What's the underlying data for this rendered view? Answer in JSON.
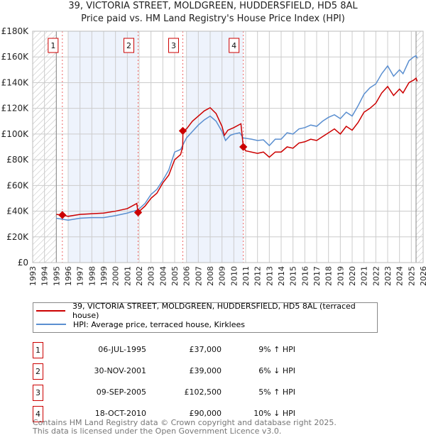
{
  "chart_data": {
    "type": "line",
    "title": "39, VICTORIA STREET, MOLDGREEN, HUDDERSFIELD, HD5 8AL",
    "subtitle": "Price paid vs. HM Land Registry's House Price Index (HPI)",
    "xlim": [
      1993,
      2026
    ],
    "ylim": [
      0,
      180000
    ],
    "x_ticks": [
      "1993",
      "1994",
      "1995",
      "1996",
      "1997",
      "1998",
      "1999",
      "2000",
      "2001",
      "2002",
      "2003",
      "2004",
      "2005",
      "2006",
      "2007",
      "2008",
      "2009",
      "2010",
      "2011",
      "2012",
      "2013",
      "2014",
      "2015",
      "2016",
      "2017",
      "2018",
      "2019",
      "2020",
      "2021",
      "2022",
      "2023",
      "2024",
      "2025",
      "2026"
    ],
    "y_ticks": [
      {
        "v": 0,
        "label": "£0"
      },
      {
        "v": 20000,
        "label": "£20K"
      },
      {
        "v": 40000,
        "label": "£40K"
      },
      {
        "v": 60000,
        "label": "£60K"
      },
      {
        "v": 80000,
        "label": "£80K"
      },
      {
        "v": 100000,
        "label": "£100K"
      },
      {
        "v": 120000,
        "label": "£120K"
      },
      {
        "v": 140000,
        "label": "£140K"
      },
      {
        "v": 160000,
        "label": "£160K"
      },
      {
        "v": 180000,
        "label": "£180K"
      }
    ],
    "grid": true,
    "series": [
      {
        "name": "39, VICTORIA STREET, MOLDGREEN, HUDDERSFIELD, HD5 8AL (terraced house)",
        "color": "#cc0000",
        "points": [
          [
            1995,
            37500
          ],
          [
            1995.5,
            37000
          ],
          [
            1996,
            36000
          ],
          [
            1997,
            37500
          ],
          [
            1998,
            38000
          ],
          [
            1999,
            38500
          ],
          [
            2000,
            40000
          ],
          [
            2001,
            42000
          ],
          [
            2001.8,
            46000
          ],
          [
            2001.9,
            39000
          ],
          [
            2002.5,
            44000
          ],
          [
            2003,
            50000
          ],
          [
            2003.5,
            54000
          ],
          [
            2004,
            62000
          ],
          [
            2004.5,
            68000
          ],
          [
            2005,
            80000
          ],
          [
            2005.5,
            84000
          ],
          [
            2005.68,
            90000
          ],
          [
            2005.7,
            102500
          ],
          [
            2006,
            104000
          ],
          [
            2006.5,
            110000
          ],
          [
            2007,
            114000
          ],
          [
            2007.5,
            118000
          ],
          [
            2008,
            120500
          ],
          [
            2008.5,
            116000
          ],
          [
            2009,
            106000
          ],
          [
            2009.2,
            99000
          ],
          [
            2009.5,
            103000
          ],
          [
            2010,
            105000
          ],
          [
            2010.6,
            108000
          ],
          [
            2010.8,
            90000
          ],
          [
            2011,
            87000
          ],
          [
            2012,
            85000
          ],
          [
            2012.5,
            86000
          ],
          [
            2013,
            82000
          ],
          [
            2013.5,
            86000
          ],
          [
            2014,
            86000
          ],
          [
            2014.5,
            90000
          ],
          [
            2015,
            89000
          ],
          [
            2015.5,
            93000
          ],
          [
            2016,
            94000
          ],
          [
            2016.5,
            96000
          ],
          [
            2017,
            95000
          ],
          [
            2017.5,
            98000
          ],
          [
            2018,
            101000
          ],
          [
            2018.5,
            104000
          ],
          [
            2019,
            100000
          ],
          [
            2019.5,
            106000
          ],
          [
            2020,
            103000
          ],
          [
            2020.5,
            109000
          ],
          [
            2021,
            117000
          ],
          [
            2021.5,
            120000
          ],
          [
            2022,
            124000
          ],
          [
            2022.5,
            132000
          ],
          [
            2023,
            137000
          ],
          [
            2023.5,
            130000
          ],
          [
            2024,
            135000
          ],
          [
            2024.3,
            132000
          ],
          [
            2024.8,
            140000
          ],
          [
            2025.2,
            142000
          ],
          [
            2025.4,
            143500
          ],
          [
            2025.5,
            141000
          ]
        ]
      },
      {
        "name": "HPI: Average price, terraced house, Kirklees",
        "color": "#5b8fd0",
        "points": [
          [
            1995,
            34500
          ],
          [
            1996,
            33000
          ],
          [
            1997,
            34500
          ],
          [
            1998,
            35000
          ],
          [
            1999,
            35000
          ],
          [
            2000,
            36500
          ],
          [
            2001,
            38500
          ],
          [
            2001.9,
            41000
          ],
          [
            2002.5,
            46000
          ],
          [
            2003,
            53000
          ],
          [
            2003.5,
            57000
          ],
          [
            2004,
            64000
          ],
          [
            2004.5,
            72000
          ],
          [
            2005,
            86000
          ],
          [
            2005.5,
            88000
          ],
          [
            2006,
            97000
          ],
          [
            2006.5,
            102000
          ],
          [
            2007,
            107000
          ],
          [
            2007.5,
            111000
          ],
          [
            2008,
            114000
          ],
          [
            2008.5,
            110000
          ],
          [
            2009,
            102000
          ],
          [
            2009.3,
            95000
          ],
          [
            2009.7,
            99000
          ],
          [
            2010,
            100000
          ],
          [
            2010.5,
            101000
          ],
          [
            2010.8,
            97000
          ],
          [
            2011.5,
            96000
          ],
          [
            2012,
            95000
          ],
          [
            2012.5,
            95500
          ],
          [
            2013,
            91000
          ],
          [
            2013.5,
            96000
          ],
          [
            2014,
            96000
          ],
          [
            2014.5,
            101000
          ],
          [
            2015,
            100000
          ],
          [
            2015.5,
            104000
          ],
          [
            2016,
            105000
          ],
          [
            2016.5,
            107000
          ],
          [
            2017,
            106000
          ],
          [
            2017.5,
            110000
          ],
          [
            2018,
            113000
          ],
          [
            2018.5,
            115000
          ],
          [
            2019,
            112000
          ],
          [
            2019.5,
            117000
          ],
          [
            2020,
            114000
          ],
          [
            2020.5,
            122000
          ],
          [
            2021,
            131000
          ],
          [
            2021.5,
            136000
          ],
          [
            2022,
            139000
          ],
          [
            2022.5,
            147000
          ],
          [
            2023,
            153000
          ],
          [
            2023.5,
            145000
          ],
          [
            2024,
            150000
          ],
          [
            2024.3,
            147000
          ],
          [
            2024.8,
            157000
          ],
          [
            2025.2,
            160000
          ],
          [
            2025.4,
            161000
          ],
          [
            2025.5,
            159000
          ]
        ]
      }
    ],
    "sales": [
      {
        "label": "1",
        "x": 1995.51,
        "y": 37000
      },
      {
        "label": "2",
        "x": 2001.91,
        "y": 39000
      },
      {
        "label": "3",
        "x": 2005.69,
        "y": 102500
      },
      {
        "label": "4",
        "x": 2010.8,
        "y": 90000
      }
    ]
  },
  "legend": {
    "red": "39, VICTORIA STREET, MOLDGREEN, HUDDERSFIELD, HD5 8AL (terraced house)",
    "blue": "HPI: Average price, terraced house, Kirklees"
  },
  "transactions": [
    {
      "num": "1",
      "date": "06-JUL-1995",
      "price": "£37,000",
      "hpi": "9% ↑ HPI"
    },
    {
      "num": "2",
      "date": "30-NOV-2001",
      "price": "£39,000",
      "hpi": "6% ↓ HPI"
    },
    {
      "num": "3",
      "date": "09-SEP-2005",
      "price": "£102,500",
      "hpi": "5% ↑ HPI"
    },
    {
      "num": "4",
      "date": "18-OCT-2010",
      "price": "£90,000",
      "hpi": "10% ↓ HPI"
    }
  ],
  "footer": {
    "line1": "Contains HM Land Registry data © Crown copyright and database right 2025.",
    "line2": "This data is licensed under the Open Government Licence v3.0."
  }
}
